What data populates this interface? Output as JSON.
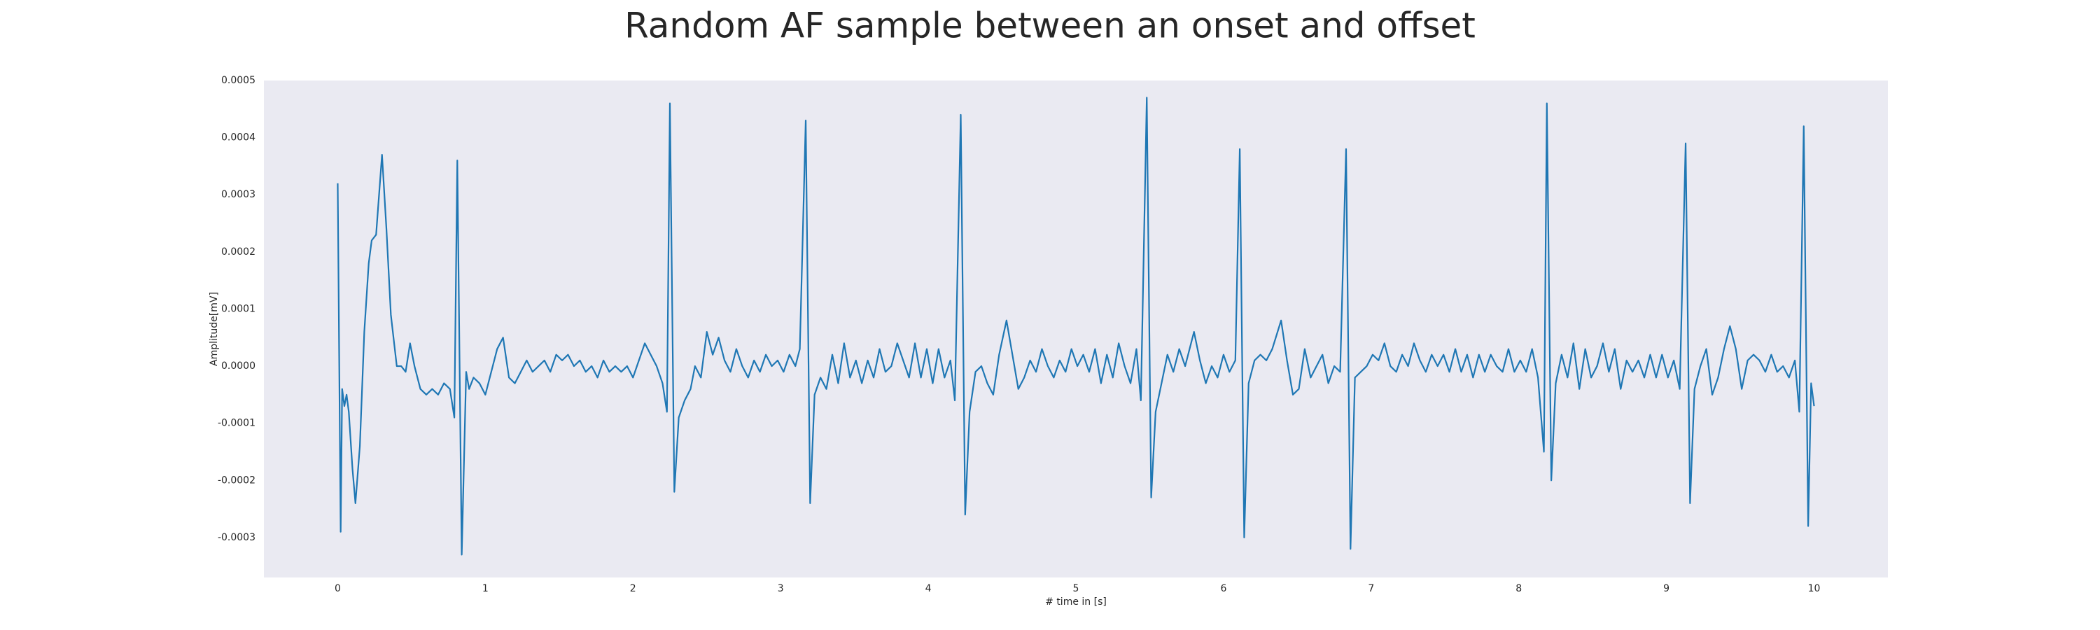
{
  "chart_data": {
    "type": "line",
    "title": "Random AF sample between an onset and offset",
    "xlabel": "# time in [s]",
    "ylabel": "Amplitude[mV]",
    "color": "#1f77b4",
    "grid": true,
    "minor_grid": true,
    "xlim": [
      -0.5,
      10.5
    ],
    "ylim": [
      -0.00037,
      0.0005
    ],
    "xticks": [
      0,
      1,
      2,
      3,
      4,
      5,
      6,
      7,
      8,
      9,
      10
    ],
    "yticks": [
      -0.0003,
      -0.0002,
      -0.0001,
      {
        "value": 0,
        "label": "0.0000"
      },
      0.0001,
      0.0002,
      0.0003,
      0.0004,
      0.0005
    ],
    "x": [
      0,
      0.02,
      0.03,
      0.045,
      0.06,
      0.075,
      0.1,
      0.12,
      0.15,
      0.18,
      0.21,
      0.23,
      0.26,
      0.3,
      0.33,
      0.36,
      0.4,
      0.43,
      0.46,
      0.49,
      0.52,
      0.56,
      0.6,
      0.64,
      0.68,
      0.72,
      0.76,
      0.79,
      0.81,
      0.84,
      0.87,
      0.89,
      0.92,
      0.96,
      1.0,
      1.04,
      1.08,
      1.12,
      1.16,
      1.2,
      1.24,
      1.28,
      1.32,
      1.36,
      1.4,
      1.44,
      1.48,
      1.52,
      1.56,
      1.6,
      1.64,
      1.68,
      1.72,
      1.76,
      1.8,
      1.84,
      1.88,
      1.92,
      1.96,
      2.0,
      2.04,
      2.08,
      2.12,
      2.16,
      2.2,
      2.23,
      2.25,
      2.28,
      2.31,
      2.35,
      2.39,
      2.42,
      2.46,
      2.5,
      2.54,
      2.58,
      2.62,
      2.66,
      2.7,
      2.74,
      2.78,
      2.82,
      2.86,
      2.9,
      2.94,
      2.98,
      3.02,
      3.06,
      3.1,
      3.13,
      3.17,
      3.2,
      3.23,
      3.27,
      3.31,
      3.35,
      3.39,
      3.43,
      3.47,
      3.51,
      3.55,
      3.59,
      3.63,
      3.67,
      3.71,
      3.75,
      3.79,
      3.83,
      3.87,
      3.91,
      3.95,
      3.99,
      4.03,
      4.07,
      4.11,
      4.15,
      4.18,
      4.22,
      4.25,
      4.28,
      4.32,
      4.36,
      4.4,
      4.44,
      4.48,
      4.53,
      4.57,
      4.61,
      4.65,
      4.69,
      4.73,
      4.77,
      4.81,
      4.85,
      4.89,
      4.93,
      4.97,
      5.01,
      5.05,
      5.09,
      5.13,
      5.17,
      5.21,
      5.25,
      5.29,
      5.33,
      5.37,
      5.41,
      5.44,
      5.48,
      5.51,
      5.54,
      5.58,
      5.62,
      5.66,
      5.7,
      5.74,
      5.78,
      5.8,
      5.84,
      5.88,
      5.92,
      5.96,
      6.0,
      6.04,
      6.08,
      6.11,
      6.14,
      6.17,
      6.21,
      6.25,
      6.29,
      6.33,
      6.39,
      6.43,
      6.47,
      6.51,
      6.55,
      6.59,
      6.63,
      6.67,
      6.71,
      6.75,
      6.79,
      6.83,
      6.86,
      6.89,
      6.93,
      6.97,
      7.01,
      7.05,
      7.09,
      7.13,
      7.17,
      7.21,
      7.25,
      7.29,
      7.33,
      7.37,
      7.41,
      7.45,
      7.49,
      7.53,
      7.57,
      7.61,
      7.65,
      7.69,
      7.73,
      7.77,
      7.81,
      7.85,
      7.89,
      7.93,
      7.97,
      8.01,
      8.05,
      8.09,
      8.13,
      8.17,
      8.19,
      8.22,
      8.25,
      8.29,
      8.33,
      8.37,
      8.41,
      8.45,
      8.49,
      8.53,
      8.57,
      8.61,
      8.65,
      8.69,
      8.73,
      8.77,
      8.81,
      8.85,
      8.89,
      8.93,
      8.97,
      9.01,
      9.05,
      9.09,
      9.13,
      9.16,
      9.19,
      9.23,
      9.27,
      9.31,
      9.35,
      9.39,
      9.43,
      9.47,
      9.51,
      9.55,
      9.59,
      9.63,
      9.67,
      9.71,
      9.75,
      9.79,
      9.83,
      9.87,
      9.9,
      9.93,
      9.96,
      9.98,
      10.0
    ],
    "values": [
      0.00032,
      -0.00029,
      -4e-05,
      -7e-05,
      -5e-05,
      -8e-05,
      -0.00018,
      -0.00024,
      -0.00014,
      6e-05,
      0.00018,
      0.00022,
      0.00023,
      0.00037,
      0.00024,
      9e-05,
      0,
      0,
      -1e-05,
      4e-05,
      0,
      -4e-05,
      -5e-05,
      -4e-05,
      -5e-05,
      -3e-05,
      -4e-05,
      -9e-05,
      0.00036,
      -0.00033,
      -1e-05,
      -4e-05,
      -2e-05,
      -3e-05,
      -5e-05,
      -1e-05,
      3e-05,
      5e-05,
      -2e-05,
      -3e-05,
      -1e-05,
      1e-05,
      -1e-05,
      0,
      1e-05,
      -1e-05,
      2e-05,
      1e-05,
      2e-05,
      0,
      1e-05,
      -1e-05,
      0,
      -2e-05,
      1e-05,
      -1e-05,
      0,
      -1e-05,
      0,
      -2e-05,
      1e-05,
      4e-05,
      2e-05,
      0,
      -3e-05,
      -8e-05,
      0.00046,
      -0.00022,
      -9e-05,
      -6e-05,
      -4e-05,
      0,
      -2e-05,
      6e-05,
      2e-05,
      5e-05,
      1e-05,
      -1e-05,
      3e-05,
      0,
      -2e-05,
      1e-05,
      -1e-05,
      2e-05,
      0,
      1e-05,
      -1e-05,
      2e-05,
      0,
      3e-05,
      0.00043,
      -0.00024,
      -5e-05,
      -2e-05,
      -4e-05,
      2e-05,
      -3e-05,
      4e-05,
      -2e-05,
      1e-05,
      -3e-05,
      1e-05,
      -2e-05,
      3e-05,
      -1e-05,
      0,
      4e-05,
      1e-05,
      -2e-05,
      4e-05,
      -2e-05,
      3e-05,
      -3e-05,
      3e-05,
      -2e-05,
      1e-05,
      -6e-05,
      0.00044,
      -0.00026,
      -8e-05,
      -1e-05,
      0,
      -3e-05,
      -5e-05,
      2e-05,
      8e-05,
      2e-05,
      -4e-05,
      -2e-05,
      1e-05,
      -1e-05,
      3e-05,
      0,
      -2e-05,
      1e-05,
      -1e-05,
      3e-05,
      0,
      2e-05,
      -1e-05,
      3e-05,
      -3e-05,
      2e-05,
      -2e-05,
      4e-05,
      0,
      -3e-05,
      3e-05,
      -6e-05,
      0.00047,
      -0.00023,
      -8e-05,
      -3e-05,
      2e-05,
      -1e-05,
      3e-05,
      0,
      4e-05,
      6e-05,
      1e-05,
      -3e-05,
      0,
      -2e-05,
      2e-05,
      -1e-05,
      1e-05,
      0.00038,
      -0.0003,
      -3e-05,
      1e-05,
      2e-05,
      1e-05,
      3e-05,
      8e-05,
      1e-05,
      -5e-05,
      -4e-05,
      3e-05,
      -2e-05,
      0,
      2e-05,
      -3e-05,
      0,
      -1e-05,
      0.00038,
      -0.00032,
      -2e-05,
      -1e-05,
      0,
      2e-05,
      1e-05,
      4e-05,
      0,
      -1e-05,
      2e-05,
      0,
      4e-05,
      1e-05,
      -1e-05,
      2e-05,
      0,
      2e-05,
      -1e-05,
      3e-05,
      -1e-05,
      2e-05,
      -2e-05,
      2e-05,
      -1e-05,
      2e-05,
      0,
      -1e-05,
      3e-05,
      -1e-05,
      1e-05,
      -1e-05,
      3e-05,
      -2e-05,
      -0.00015,
      0.00046,
      -0.0002,
      -3e-05,
      2e-05,
      -2e-05,
      4e-05,
      -4e-05,
      3e-05,
      -2e-05,
      0,
      4e-05,
      -1e-05,
      3e-05,
      -4e-05,
      1e-05,
      -1e-05,
      1e-05,
      -2e-05,
      2e-05,
      -2e-05,
      2e-05,
      -2e-05,
      1e-05,
      -4e-05,
      0.00039,
      -0.00024,
      -4e-05,
      0,
      3e-05,
      -5e-05,
      -2e-05,
      3e-05,
      7e-05,
      3e-05,
      -4e-05,
      1e-05,
      2e-05,
      1e-05,
      -1e-05,
      2e-05,
      -1e-05,
      0,
      -2e-05,
      1e-05,
      -8e-05,
      0.00042,
      -0.00028,
      -3e-05,
      -7e-05
    ]
  }
}
